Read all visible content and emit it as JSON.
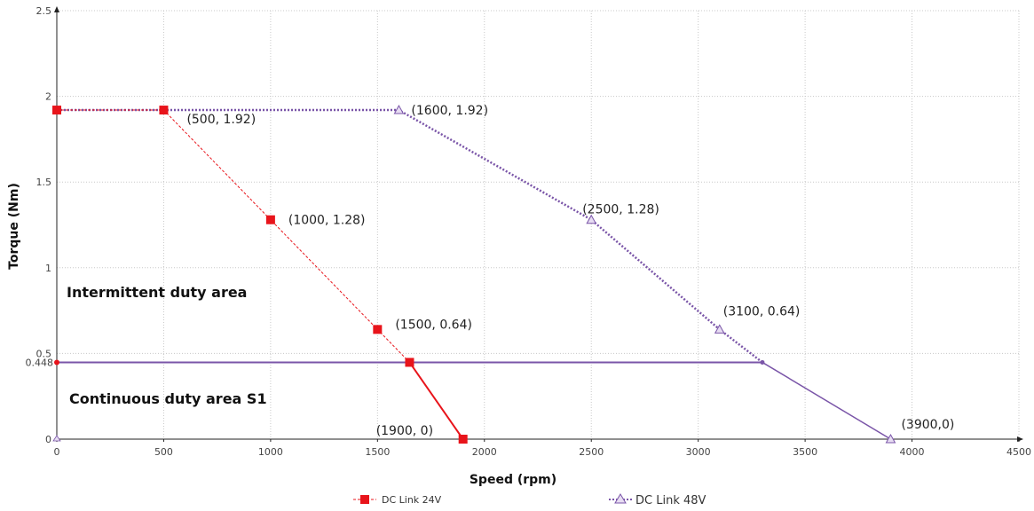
{
  "chart_data": {
    "type": "line",
    "xlabel": "Speed (rpm)",
    "ylabel": "Torque (Nm)",
    "xlim": [
      0,
      4500
    ],
    "ylim": [
      0,
      2.5
    ],
    "x_ticks": [
      "0",
      "500",
      "1000",
      "1500",
      "2000",
      "2500",
      "3000",
      "3500",
      "4000",
      "4500"
    ],
    "y_ticks": [
      "0",
      "0.5",
      "1",
      "1.5",
      "2",
      "2.5"
    ],
    "y_extra_tick": {
      "value": 0.448,
      "label": "0.448"
    },
    "grid": "dotted",
    "legend_position": "bottom",
    "series": [
      {
        "name": "DC Link 24V",
        "color": "#e8141b",
        "marker": "square",
        "line": "dashed",
        "points": [
          [
            0,
            1.92
          ],
          [
            500,
            1.92
          ],
          [
            1000,
            1.28
          ],
          [
            1500,
            0.64
          ],
          [
            1650,
            0.448
          ],
          [
            1900,
            0
          ]
        ]
      },
      {
        "name": "DC Link 48V",
        "color": "#7a55a8",
        "marker": "triangle",
        "line": "dotted",
        "points": [
          [
            0,
            1.92
          ],
          [
            1600,
            1.92
          ],
          [
            2500,
            1.28
          ],
          [
            3100,
            0.64
          ],
          [
            3300,
            0.448
          ],
          [
            3900,
            0
          ]
        ]
      }
    ],
    "continuous_line": {
      "y": 0.448,
      "x_from": 0,
      "x_to": 3300,
      "color": "#7a55a8"
    },
    "continuous_tail_24v": {
      "points": [
        [
          1650,
          0.448
        ],
        [
          1900,
          0
        ]
      ],
      "color": "#e8141b"
    },
    "point_labels": [
      {
        "x": 500,
        "y": 1.92,
        "text": "(500, 1.92)"
      },
      {
        "x": 1000,
        "y": 1.28,
        "text": "(1000, 1.28)"
      },
      {
        "x": 1500,
        "y": 0.64,
        "text": "(1500, 0.64)"
      },
      {
        "x": 1900,
        "y": 0,
        "text": "(1900, 0)"
      },
      {
        "x": 1600,
        "y": 1.92,
        "text": "(1600, 1.92)"
      },
      {
        "x": 2500,
        "y": 1.28,
        "text": "(2500, 1.28)"
      },
      {
        "x": 3100,
        "y": 0.64,
        "text": "(3100, 0.64)"
      },
      {
        "x": 3900,
        "y": 0,
        "text": "(3900,0)"
      }
    ],
    "area_labels": [
      {
        "text": "Intermittent duty area"
      },
      {
        "text": "Continuous duty area S1"
      }
    ]
  }
}
